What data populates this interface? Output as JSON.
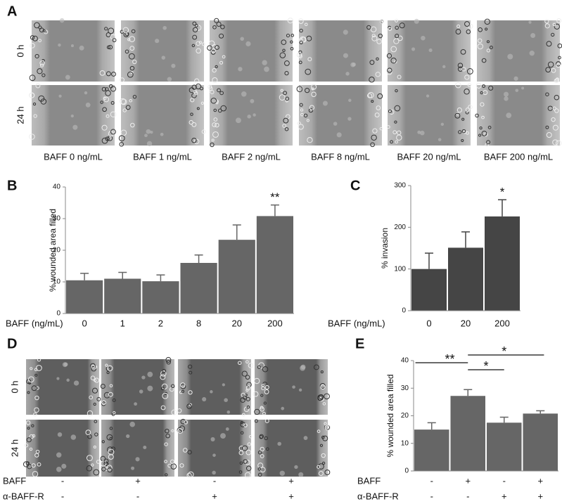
{
  "panel_a": {
    "label": "A",
    "rows": [
      "0 h",
      "24 h"
    ],
    "captions": [
      "BAFF 0 ng/mL",
      "BAFF 1 ng/mL",
      "BAFF 2 ng/mL",
      "BAFF 8 ng/mL",
      "BAFF 20 ng/mL",
      "BAFF 200 ng/mL"
    ]
  },
  "panel_d": {
    "label": "D",
    "rows": [
      "0 h",
      "24 h"
    ],
    "condition_labels": [
      "BAFF",
      "α-BAFF-R"
    ],
    "conditions": [
      [
        "-",
        "+",
        "-",
        "+"
      ],
      [
        "-",
        "-",
        "+",
        "+"
      ]
    ]
  },
  "chart_data": [
    {
      "type": "bar",
      "panel": "B",
      "ylabel": "% wounded area filled",
      "xlabel": "BAFF (ng/mL)",
      "categories": [
        "0",
        "1",
        "2",
        "8",
        "20",
        "200"
      ],
      "values": [
        10.5,
        11,
        10.2,
        16,
        23.3,
        30.8
      ],
      "errors": [
        2.2,
        2,
        2,
        2.5,
        4.7,
        3.5
      ],
      "significance": [
        null,
        null,
        null,
        null,
        null,
        "**"
      ],
      "color": "#666666",
      "ylim": [
        0,
        40
      ],
      "yticks": [
        0,
        10,
        20,
        30,
        40
      ]
    },
    {
      "type": "bar",
      "panel": "C",
      "ylabel": "% invasion",
      "xlabel": "BAFF (ng/mL)",
      "categories": [
        "0",
        "20",
        "200"
      ],
      "values": [
        100,
        151,
        226
      ],
      "errors": [
        38,
        38,
        40
      ],
      "significance": [
        null,
        null,
        "*"
      ],
      "color": "#454545",
      "ylim": [
        0,
        300
      ],
      "yticks": [
        0,
        100,
        200,
        300
      ]
    },
    {
      "type": "bar",
      "panel": "E",
      "ylabel": "% wounded area filled",
      "row_labels": [
        "BAFF",
        "α-BAFF-R"
      ],
      "rows": [
        [
          "-",
          "+",
          "-",
          "+"
        ],
        [
          "-",
          "-",
          "+",
          "+"
        ]
      ],
      "values": [
        15,
        27.2,
        17.5,
        20.8
      ],
      "errors": [
        2.5,
        2.3,
        2,
        1
      ],
      "comparisons": [
        {
          "label": "**",
          "pair": [
            0,
            1
          ]
        },
        {
          "label": "*",
          "pair": [
            1,
            3
          ]
        },
        {
          "label": "*",
          "pair": [
            1,
            2
          ]
        }
      ],
      "color": "#666666",
      "ylim": [
        0,
        40
      ],
      "yticks": [
        0,
        10,
        20,
        30,
        40
      ]
    }
  ]
}
